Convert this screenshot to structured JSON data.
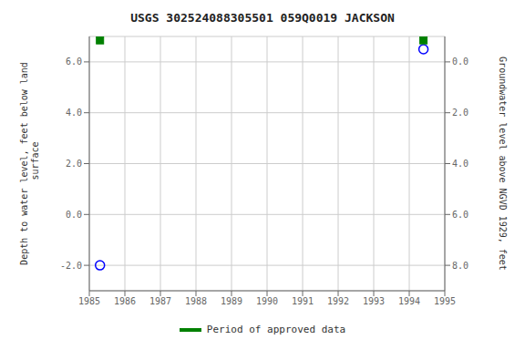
{
  "chart_data": {
    "type": "scatter",
    "title": "USGS 302524088305501 059Q0019  JACKSON",
    "y_label": "Depth to water level, feet below land\n surface",
    "y2_label": "Groundwater level above NGVD 1929, feet",
    "xlim": [
      1985,
      1995
    ],
    "xticks": [
      1985,
      1986,
      1987,
      1988,
      1989,
      1990,
      1991,
      1992,
      1993,
      1994,
      1995
    ],
    "ylim": [
      -3.0,
      7.0
    ],
    "yticks": [
      {
        "value": -2.0,
        "label": "-2.0"
      },
      {
        "value": 0.0,
        "label": "0.0"
      },
      {
        "value": 2.0,
        "label": "2.0"
      },
      {
        "value": 4.0,
        "label": "4.0"
      },
      {
        "value": 6.0,
        "label": "6.0"
      }
    ],
    "y2lim": [
      9.0,
      -1.0
    ],
    "y2ticks": [
      {
        "value": 8.0,
        "label": "8.0"
      },
      {
        "value": 6.0,
        "label": "6.0"
      },
      {
        "value": 4.0,
        "label": "4.0"
      },
      {
        "value": 2.0,
        "label": "2.0"
      },
      {
        "value": 0.0,
        "label": "0.0"
      }
    ],
    "grid": true,
    "legend": "bottom",
    "series": [
      {
        "color": "#0000ff",
        "marker": "circle",
        "x": [
          1985.3,
          1994.4
        ],
        "values": [
          -2.0,
          6.5
        ]
      },
      {
        "name": "Period of approved data",
        "color": "#008000",
        "marker": "square",
        "x": [
          1985.3,
          1994.4
        ],
        "values": [
          6.85,
          6.85
        ]
      }
    ]
  }
}
